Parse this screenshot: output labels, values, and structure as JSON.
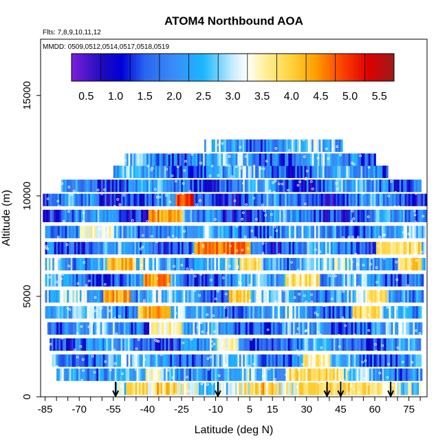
{
  "chart_data": {
    "type": "heatmap",
    "title": "ATOM4 Northbound AOA",
    "subtitle_flights": "Flts: 7,8,9,10,11,12",
    "subtitle_dates": "MMDD: 0509,0512,0514,0517,0518,0519",
    "xlabel": "Latitude (deg N)",
    "ylabel": "Altitude (m)",
    "xlim": [
      -87,
      83
    ],
    "ylim": [
      0,
      17800
    ],
    "x_ticks": [
      -85,
      -80,
      -75,
      -70,
      -65,
      -60,
      -55,
      -50,
      -45,
      -40,
      -35,
      -30,
      -25,
      -20,
      -15,
      -10,
      -5,
      0,
      5,
      10,
      15,
      20,
      25,
      30,
      35,
      40,
      45,
      50,
      55,
      60,
      65,
      70,
      75,
      80
    ],
    "x_tick_labels": [
      "-85",
      "-70",
      "-55",
      "-40",
      "-25",
      "-10",
      "5",
      "15",
      "30",
      "45",
      "60",
      "75"
    ],
    "x_tick_label_values": [
      -85,
      -70,
      -55,
      -40,
      -25,
      -10,
      5,
      15,
      30,
      45,
      60,
      75
    ],
    "y_ticks": [
      0,
      5000,
      10000,
      15000
    ],
    "y_tick_labels": [
      "0",
      "5000",
      "10000",
      "15000"
    ],
    "colorbar": {
      "min": 0.25,
      "max": 5.75,
      "labels": [
        "0.5",
        "1.0",
        "1.5",
        "2.0",
        "2.5",
        "3.0",
        "3.5",
        "4.0",
        "4.5",
        "5.0",
        "5.5"
      ],
      "label_values": [
        0.5,
        1.0,
        1.5,
        2.0,
        2.5,
        3.0,
        3.5,
        4.0,
        4.5,
        5.0,
        5.5
      ],
      "colors": [
        [
          0.25,
          "#7b1fd9"
        ],
        [
          0.8,
          "#1a0bbd"
        ],
        [
          1.1,
          "#0000d6"
        ],
        [
          1.5,
          "#2a66f0"
        ],
        [
          2.0,
          "#3b8cf7"
        ],
        [
          2.5,
          "#1ab7ff"
        ],
        [
          3.0,
          "#c8ecff"
        ],
        [
          3.25,
          "#ffffff"
        ],
        [
          3.5,
          "#fff3a6"
        ],
        [
          4.0,
          "#ffd23a"
        ],
        [
          4.4,
          "#ffa000"
        ],
        [
          4.8,
          "#ff4d00"
        ],
        [
          5.3,
          "#e00000"
        ],
        [
          5.75,
          "#9b1b1b"
        ]
      ]
    },
    "arrow_latitudes": [
      -54,
      -9,
      39,
      45,
      67
    ],
    "flight_levels": [
      {
        "alt": 400,
        "lat_range": [
          -55,
          80
        ],
        "base": 3.3,
        "warm": [
          [
            25,
            58,
            3.9
          ],
          [
            -50,
            -40,
            3.8
          ]
        ]
      },
      {
        "alt": 1100,
        "lat_range": [
          -80,
          80
        ],
        "base": 2.4,
        "warm": [
          [
            20,
            45,
            3.8
          ]
        ]
      },
      {
        "alt": 1800,
        "lat_range": [
          -82,
          80
        ],
        "base": 2.1,
        "warm": [
          [
            28,
            40,
            3.6
          ]
        ]
      },
      {
        "alt": 2600,
        "lat_range": [
          -83,
          80
        ],
        "base": 1.9,
        "warm": [
          [
            -10,
            0,
            3.3
          ]
        ]
      },
      {
        "alt": 3400,
        "lat_range": [
          -84,
          80
        ],
        "base": 2.0,
        "warm": [
          [
            -40,
            -25,
            3.5
          ]
        ]
      },
      {
        "alt": 4200,
        "lat_range": [
          -85,
          80
        ],
        "base": 2.2,
        "warm": [
          [
            -45,
            -30,
            4.2
          ],
          [
            50,
            62,
            3.8
          ]
        ]
      },
      {
        "alt": 5000,
        "lat_range": [
          -85,
          81
        ],
        "base": 2.3,
        "warm": [
          [
            -60,
            -48,
            4.3
          ],
          [
            -5,
            5,
            3.9
          ],
          [
            55,
            65,
            3.8
          ]
        ]
      },
      {
        "alt": 5800,
        "lat_range": [
          -85,
          81
        ],
        "base": 2.0,
        "warm": [
          [
            -42,
            -30,
            4.4
          ],
          [
            20,
            35,
            3.7
          ]
        ]
      },
      {
        "alt": 6600,
        "lat_range": [
          -85,
          82
        ],
        "base": 2.4,
        "warm": [
          [
            -58,
            -46,
            4.1
          ],
          [
            0,
            10,
            3.8
          ],
          [
            70,
            80,
            3.9
          ]
        ]
      },
      {
        "alt": 7400,
        "lat_range": [
          -85,
          82
        ],
        "base": 1.8,
        "warm": [
          [
            -20,
            5,
            4.6
          ],
          [
            60,
            80,
            3.8
          ]
        ]
      },
      {
        "alt": 8200,
        "lat_range": [
          -85,
          82
        ],
        "base": 2.1,
        "warm": [
          [
            -70,
            -55,
            3.4
          ]
        ]
      },
      {
        "alt": 9000,
        "lat_range": [
          -86,
          82
        ],
        "base": 1.7,
        "warm": [
          [
            -40,
            -25,
            4.3
          ]
        ]
      },
      {
        "alt": 9800,
        "lat_range": [
          -86,
          82
        ],
        "base": 1.6,
        "warm": [
          [
            -28,
            -20,
            5.0
          ]
        ]
      },
      {
        "alt": 10500,
        "lat_range": [
          -78,
          80
        ],
        "base": 1.9,
        "warm": []
      },
      {
        "alt": 11200,
        "lat_range": [
          -55,
          65
        ],
        "base": 2.0,
        "warm": []
      },
      {
        "alt": 11800,
        "lat_range": [
          -50,
          60
        ],
        "base": 2.1,
        "warm": []
      },
      {
        "alt": 12500,
        "lat_range": [
          -15,
          45
        ],
        "base": 2.3,
        "warm": []
      }
    ]
  }
}
